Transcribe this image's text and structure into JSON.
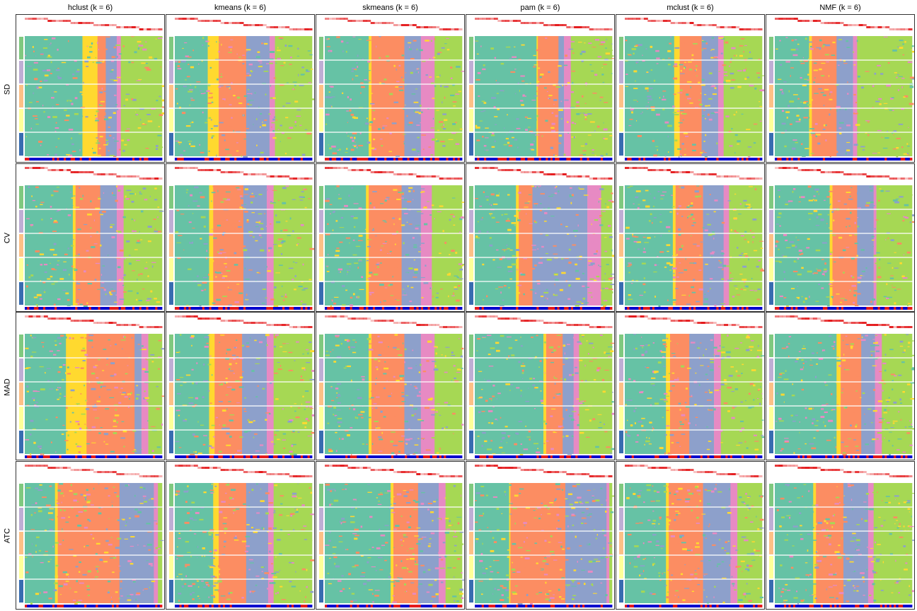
{
  "columns": [
    "hclust (k = 6)",
    "kmeans (k = 6)",
    "skmeans (k = 6)",
    "pam (k = 6)",
    "mclust (k = 6)",
    "NMF (k = 6)"
  ],
  "rows": [
    "SD",
    "CV",
    "MAD",
    "ATC"
  ],
  "colors": {
    "class1": "#66C2A5",
    "class2": "#FC8D62",
    "class3": "#8DA0CB",
    "class4": "#E78AC3",
    "class5": "#A6D854",
    "class6": "#FFD92F",
    "annotation_top": "#E41A1C",
    "annotation_bottom_a": "#0000CD",
    "annotation_bottom_b": "#E41A1C",
    "side_green": "#7FC97F",
    "side_purple": "#BEAED4",
    "side_orange": "#FDC086",
    "side_yellow": "#FFFF99",
    "side_blue": "#386CB0",
    "frame": "#333333"
  },
  "chart_data": {
    "type": "heatmap",
    "description_grid": "4 rows (top-value methods) x 6 columns (partition methods) of class membership heatmaps, k = 6",
    "classes": [
      1,
      2,
      3,
      4,
      5,
      6
    ],
    "panels": [
      {
        "row": "SD",
        "method": "hclust",
        "class_proportions": [
          0.42,
          0.06,
          0.08,
          0.03,
          0.3,
          0.11
        ]
      },
      {
        "row": "SD",
        "method": "kmeans",
        "class_proportions": [
          0.24,
          0.2,
          0.17,
          0.04,
          0.27,
          0.08
        ]
      },
      {
        "row": "SD",
        "method": "skmeans",
        "class_proportions": [
          0.32,
          0.24,
          0.12,
          0.1,
          0.2,
          0.02
        ]
      },
      {
        "row": "SD",
        "method": "pam",
        "class_proportions": [
          0.45,
          0.15,
          0.04,
          0.05,
          0.3,
          0.01
        ]
      },
      {
        "row": "SD",
        "method": "mclust",
        "class_proportions": [
          0.36,
          0.16,
          0.12,
          0.04,
          0.28,
          0.04
        ]
      },
      {
        "row": "SD",
        "method": "NMF",
        "class_proportions": [
          0.25,
          0.18,
          0.12,
          0.03,
          0.4,
          0.02
        ]
      },
      {
        "row": "CV",
        "method": "hclust",
        "class_proportions": [
          0.35,
          0.18,
          0.12,
          0.05,
          0.28,
          0.02
        ]
      },
      {
        "row": "CV",
        "method": "kmeans",
        "class_proportions": [
          0.25,
          0.22,
          0.17,
          0.05,
          0.28,
          0.03
        ]
      },
      {
        "row": "CV",
        "method": "skmeans",
        "class_proportions": [
          0.3,
          0.24,
          0.14,
          0.08,
          0.22,
          0.02
        ]
      },
      {
        "row": "CV",
        "method": "pam",
        "class_proportions": [
          0.3,
          0.1,
          0.4,
          0.1,
          0.08,
          0.02
        ]
      },
      {
        "row": "CV",
        "method": "mclust",
        "class_proportions": [
          0.35,
          0.2,
          0.15,
          0.04,
          0.24,
          0.02
        ]
      },
      {
        "row": "CV",
        "method": "NMF",
        "class_proportions": [
          0.4,
          0.18,
          0.12,
          0.02,
          0.26,
          0.02
        ]
      },
      {
        "row": "MAD",
        "method": "hclust",
        "class_proportions": [
          0.3,
          0.35,
          0.05,
          0.05,
          0.1,
          0.15
        ]
      },
      {
        "row": "MAD",
        "method": "kmeans",
        "class_proportions": [
          0.25,
          0.2,
          0.18,
          0.05,
          0.28,
          0.04
        ]
      },
      {
        "row": "MAD",
        "method": "skmeans",
        "class_proportions": [
          0.32,
          0.24,
          0.12,
          0.1,
          0.2,
          0.02
        ]
      },
      {
        "row": "MAD",
        "method": "pam",
        "class_proportions": [
          0.5,
          0.12,
          0.08,
          0.04,
          0.24,
          0.02
        ]
      },
      {
        "row": "MAD",
        "method": "mclust",
        "class_proportions": [
          0.3,
          0.14,
          0.18,
          0.05,
          0.3,
          0.03
        ]
      },
      {
        "row": "MAD",
        "method": "NMF",
        "class_proportions": [
          0.45,
          0.15,
          0.1,
          0.05,
          0.22,
          0.03
        ]
      },
      {
        "row": "ATC",
        "method": "hclust",
        "class_proportions": [
          0.22,
          0.45,
          0.25,
          0.03,
          0.03,
          0.02
        ]
      },
      {
        "row": "ATC",
        "method": "kmeans",
        "class_proportions": [
          0.28,
          0.2,
          0.16,
          0.04,
          0.28,
          0.04
        ]
      },
      {
        "row": "ATC",
        "method": "skmeans",
        "class_proportions": [
          0.48,
          0.18,
          0.15,
          0.05,
          0.12,
          0.02
        ]
      },
      {
        "row": "ATC",
        "method": "pam",
        "class_proportions": [
          0.25,
          0.4,
          0.3,
          0.02,
          0.02,
          0.01
        ]
      },
      {
        "row": "ATC",
        "method": "mclust",
        "class_proportions": [
          0.3,
          0.25,
          0.2,
          0.05,
          0.18,
          0.02
        ]
      },
      {
        "row": "ATC",
        "method": "NMF",
        "class_proportions": [
          0.28,
          0.2,
          0.18,
          0.04,
          0.28,
          0.02
        ]
      }
    ]
  }
}
